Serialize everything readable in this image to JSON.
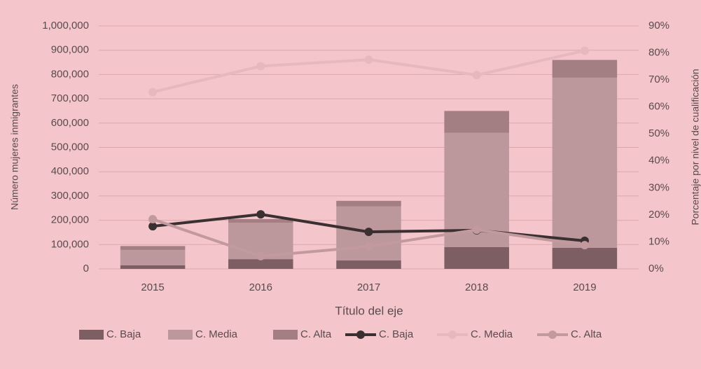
{
  "chart_data": {
    "type": "bar",
    "stacked": true,
    "x_label": "Título del eje",
    "y_label": "Número mujeres inmigrantes",
    "y2_label": "Porcentaje por nivel de cualificación",
    "categories": [
      "2015",
      "2016",
      "2017",
      "2018",
      "2019"
    ],
    "series": [
      {
        "name": "C. Baja",
        "type": "bar",
        "color": "#7d5f63",
        "values": [
          15000,
          40000,
          35000,
          90000,
          87000
        ]
      },
      {
        "name": "C. Media",
        "type": "bar",
        "color": "#bc989c",
        "values": [
          63000,
          150000,
          222000,
          470000,
          700000
        ]
      },
      {
        "name": "C. Alta",
        "type": "bar",
        "color": "#a37e82",
        "values": [
          16000,
          15000,
          23000,
          90000,
          73000
        ]
      },
      {
        "name": "C. Baja",
        "type": "line",
        "axis": "y2",
        "color": "#3a3032",
        "values": [
          15.8,
          20.2,
          13.7,
          14.3,
          10.4
        ]
      },
      {
        "name": "C. Media",
        "type": "line",
        "axis": "y2",
        "color": "#e6b9be",
        "values": [
          65.5,
          75.1,
          77.5,
          71.8,
          80.8
        ]
      },
      {
        "name": "C. Alta",
        "type": "line",
        "axis": "y2",
        "color": "#c29a9e",
        "values": [
          18.4,
          4.7,
          8.3,
          14.5,
          8.8
        ]
      }
    ],
    "ylim": [
      0,
      1000000
    ],
    "yticks": [
      0,
      {
        "value": 100000,
        "label": "100,000"
      },
      {
        "value": 200000,
        "label": "200,000"
      },
      {
        "value": 300000,
        "label": "300,000"
      },
      {
        "value": 400000,
        "label": "400,000"
      },
      {
        "value": 500000,
        "label": "500,000"
      },
      {
        "value": 600000,
        "label": "600,000"
      },
      {
        "value": 700000,
        "label": "700,000"
      },
      {
        "value": 800000,
        "label": "800,000"
      },
      {
        "value": 900000,
        "label": "900,000"
      },
      {
        "value": 1000000,
        "label": "1,000,000"
      }
    ],
    "y2lim": [
      0,
      90
    ],
    "y2ticks": [
      {
        "value": 0,
        "label": "0%"
      },
      {
        "value": 10,
        "label": "10%"
      },
      {
        "value": 20,
        "label": "20%"
      },
      {
        "value": 30,
        "label": "30%"
      },
      {
        "value": 40,
        "label": "40%"
      },
      {
        "value": 50,
        "label": "50%"
      },
      {
        "value": 60,
        "label": "60%"
      },
      {
        "value": 70,
        "label": "70%"
      },
      {
        "value": 80,
        "label": "80%"
      },
      {
        "value": 90,
        "label": "90%"
      }
    ],
    "grid": true,
    "legend": "bottom"
  }
}
